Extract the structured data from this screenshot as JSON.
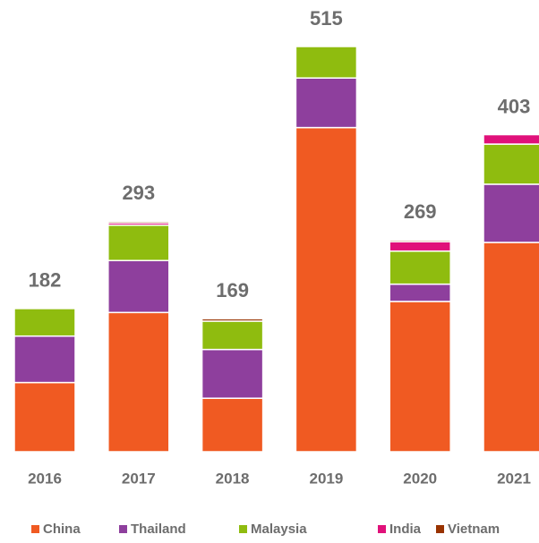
{
  "chart_data": {
    "type": "stacked_bar",
    "categories": [
      "2016",
      "2017",
      "2018",
      "2019",
      "2020",
      "2021"
    ],
    "totals": [
      182,
      293,
      169,
      515,
      269,
      403
    ],
    "series": [
      {
        "name": "China",
        "color": "#f05a22",
        "values": [
          88,
          177,
          68,
          412,
          191,
          266
        ]
      },
      {
        "name": "Thailand",
        "color": "#8e3f9d",
        "values": [
          59,
          66,
          62,
          63,
          22,
          74
        ]
      },
      {
        "name": "Malaysia",
        "color": "#8fbc0f",
        "values": [
          35,
          45,
          36,
          40,
          42,
          51
        ]
      },
      {
        "name": "India",
        "color": "#e0117a",
        "values": [
          null,
          3,
          null,
          null,
          12,
          12
        ]
      },
      {
        "name": "Vietnam",
        "color": "#993300",
        "values": [
          null,
          2,
          3,
          null,
          2,
          null
        ]
      }
    ],
    "legend": "bottom"
  }
}
